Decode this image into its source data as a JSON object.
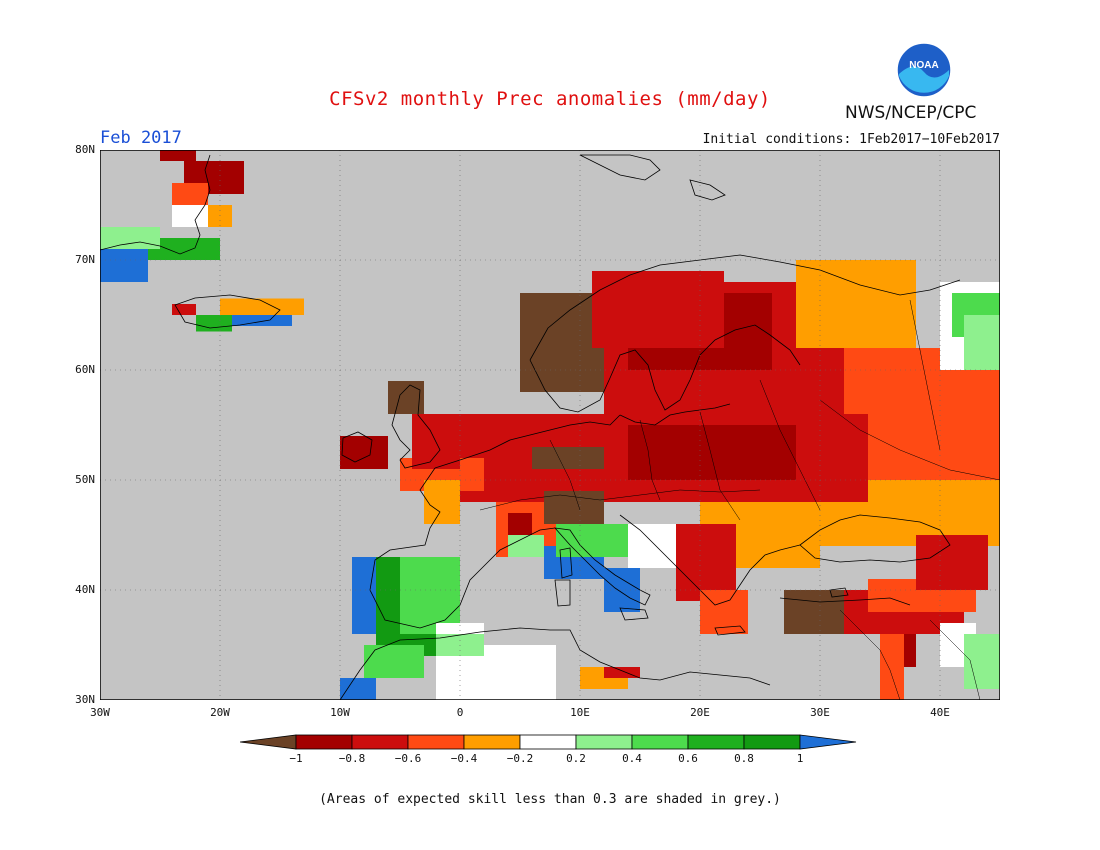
{
  "title": "CFSv2 monthly Prec anomalies (mm/day)",
  "month_label": "Feb 2017",
  "agency": "NWS/NCEP/CPC",
  "logo_text": "NOAA",
  "initial_conditions": "Initial conditions: 1Feb2017−10Feb2017",
  "footnote": "(Areas of expected skill less than 0.3 are shaded in grey.)",
  "colors": {
    "no_skill": "#c4c4c4",
    "land_outline": "#000000",
    "grid": "#666666"
  },
  "map": {
    "lon_range": [
      -30,
      45
    ],
    "lat_range": [
      30,
      80
    ],
    "lat_labels": [
      "30N",
      "40N",
      "50N",
      "60N",
      "70N",
      "80N"
    ],
    "lon_labels": [
      "30W",
      "20W",
      "10W",
      "0",
      "10E",
      "20E",
      "30E",
      "40E"
    ]
  },
  "colorbar": {
    "bins": [
      {
        "label": "< -1",
        "color": "#6b4226"
      },
      {
        "label": "-1 to -0.8",
        "color": "#a30000"
      },
      {
        "label": "-0.8 to -0.6",
        "color": "#cc0d0d"
      },
      {
        "label": "-0.6 to -0.4",
        "color": "#ff4a14"
      },
      {
        "label": "-0.4 to -0.2",
        "color": "#ff9e00"
      },
      {
        "label": "-0.2 to 0.2",
        "color": "#ffffff"
      },
      {
        "label": "0.2 to 0.4",
        "color": "#8ef08e"
      },
      {
        "label": "0.4 to 0.6",
        "color": "#4ddb4d"
      },
      {
        "label": "0.6 to 0.8",
        "color": "#1fb01f"
      },
      {
        "label": "0.8 to 1",
        "color": "#129a12"
      },
      {
        "label": "> 1",
        "color": "#1e6fd6"
      }
    ],
    "tick_labels": [
      "−1",
      "−0.8",
      "−0.6",
      "−0.4",
      "−0.2",
      "0.2",
      "0.4",
      "0.6",
      "0.8",
      "1"
    ]
  },
  "anomaly_regions": [
    {
      "bin": 2,
      "lat": [
        55,
        68
      ],
      "lon": [
        12,
        28
      ]
    },
    {
      "bin": 1,
      "lat": [
        60,
        67
      ],
      "lon": [
        14,
        26
      ]
    },
    {
      "bin": 2,
      "lat": [
        52,
        66
      ],
      "lon": [
        26,
        34
      ]
    },
    {
      "bin": 3,
      "lat": [
        46,
        62
      ],
      "lon": [
        32,
        45
      ]
    },
    {
      "bin": 4,
      "lat": [
        62,
        70
      ],
      "lon": [
        28,
        38
      ]
    },
    {
      "bin": 4,
      "lat": [
        44,
        50
      ],
      "lon": [
        30,
        45
      ]
    },
    {
      "bin": 5,
      "lat": [
        60,
        68
      ],
      "lon": [
        40,
        45
      ]
    },
    {
      "bin": 7,
      "lat": [
        63,
        67
      ],
      "lon": [
        41,
        45
      ]
    },
    {
      "bin": 2,
      "lat": [
        48,
        56
      ],
      "lon": [
        -2,
        34
      ]
    },
    {
      "bin": 1,
      "lat": [
        50,
        55
      ],
      "lon": [
        14,
        28
      ]
    },
    {
      "bin": 0,
      "lat": [
        51,
        53
      ],
      "lon": [
        6,
        12
      ]
    },
    {
      "bin": 0,
      "lat": [
        58,
        67
      ],
      "lon": [
        5,
        12
      ]
    },
    {
      "bin": 2,
      "lat": [
        62,
        69
      ],
      "lon": [
        11,
        22
      ]
    },
    {
      "bin": 3,
      "lat": [
        49,
        52
      ],
      "lon": [
        -5,
        2
      ]
    },
    {
      "bin": 4,
      "lat": [
        46,
        50
      ],
      "lon": [
        -3,
        0
      ]
    },
    {
      "bin": 2,
      "lat": [
        51,
        56
      ],
      "lon": [
        -4,
        0
      ]
    },
    {
      "bin": 1,
      "lat": [
        51,
        54
      ],
      "lon": [
        -10,
        -6
      ]
    },
    {
      "bin": 0,
      "lat": [
        56,
        59
      ],
      "lon": [
        -6,
        -3
      ]
    },
    {
      "bin": 3,
      "lat": [
        43,
        48
      ],
      "lon": [
        3,
        8
      ]
    },
    {
      "bin": 1,
      "lat": [
        44,
        47
      ],
      "lon": [
        4,
        6
      ]
    },
    {
      "bin": 0,
      "lat": [
        46,
        49
      ],
      "lon": [
        7,
        12
      ]
    },
    {
      "bin": 4,
      "lat": [
        42,
        48
      ],
      "lon": [
        20,
        30
      ]
    },
    {
      "bin": 2,
      "lat": [
        39,
        46
      ],
      "lon": [
        18,
        23
      ]
    },
    {
      "bin": 3,
      "lat": [
        36,
        40
      ],
      "lon": [
        20,
        24
      ]
    },
    {
      "bin": 5,
      "lat": [
        42,
        46
      ],
      "lon": [
        14,
        18
      ]
    },
    {
      "bin": 0,
      "lat": [
        36,
        40
      ],
      "lon": [
        27,
        32
      ]
    },
    {
      "bin": 2,
      "lat": [
        36,
        40
      ],
      "lon": [
        32,
        42
      ]
    },
    {
      "bin": 3,
      "lat": [
        38,
        41
      ],
      "lon": [
        34,
        43
      ]
    },
    {
      "bin": 2,
      "lat": [
        40,
        45
      ],
      "lon": [
        38,
        44
      ]
    },
    {
      "bin": 3,
      "lat": [
        30,
        36
      ],
      "lon": [
        35,
        37
      ]
    },
    {
      "bin": 1,
      "lat": [
        33,
        36
      ],
      "lon": [
        37,
        38
      ]
    },
    {
      "bin": 9,
      "lat": [
        34,
        43
      ],
      "lon": [
        -7,
        -2
      ]
    },
    {
      "bin": 10,
      "lat": [
        36,
        43
      ],
      "lon": [
        -9,
        -7
      ]
    },
    {
      "bin": 7,
      "lat": [
        36,
        43
      ],
      "lon": [
        -5,
        0
      ]
    },
    {
      "bin": 10,
      "lat": [
        41,
        44
      ],
      "lon": [
        7,
        12
      ]
    },
    {
      "bin": 10,
      "lat": [
        38,
        42
      ],
      "lon": [
        12,
        15
      ]
    },
    {
      "bin": 7,
      "lat": [
        43,
        46
      ],
      "lon": [
        8,
        14
      ]
    },
    {
      "bin": 6,
      "lat": [
        43,
        45
      ],
      "lon": [
        4,
        7
      ]
    },
    {
      "bin": 5,
      "lat": [
        30,
        35
      ],
      "lon": [
        2,
        8
      ]
    },
    {
      "bin": 5,
      "lat": [
        30,
        37
      ],
      "lon": [
        -2,
        2
      ]
    },
    {
      "bin": 7,
      "lat": [
        32,
        35
      ],
      "lon": [
        -8,
        -3
      ]
    },
    {
      "bin": 10,
      "lat": [
        30,
        32
      ],
      "lon": [
        -10,
        -7
      ]
    },
    {
      "bin": 6,
      "lat": [
        34,
        36
      ],
      "lon": [
        -2,
        2
      ]
    },
    {
      "bin": 4,
      "lat": [
        31,
        33
      ],
      "lon": [
        10,
        14
      ]
    },
    {
      "bin": 2,
      "lat": [
        32,
        33
      ],
      "lon": [
        12,
        15
      ]
    },
    {
      "bin": 5,
      "lat": [
        33,
        37
      ],
      "lon": [
        40,
        43
      ]
    },
    {
      "bin": 6,
      "lat": [
        31,
        36
      ],
      "lon": [
        42,
        45
      ]
    },
    {
      "bin": 6,
      "lat": [
        60,
        65
      ],
      "lon": [
        42,
        45
      ]
    },
    {
      "bin": 1,
      "lat": [
        76,
        79
      ],
      "lon": [
        -23,
        -18
      ]
    },
    {
      "bin": 3,
      "lat": [
        75,
        77
      ],
      "lon": [
        -24,
        -21
      ]
    },
    {
      "bin": 4,
      "lat": [
        73,
        75
      ],
      "lon": [
        -21,
        -19
      ]
    },
    {
      "bin": 5,
      "lat": [
        73,
        75
      ],
      "lon": [
        -24,
        -21
      ]
    },
    {
      "bin": 1,
      "lat": [
        79,
        80
      ],
      "lon": [
        -25,
        -22
      ]
    },
    {
      "bin": 8,
      "lat": [
        70,
        72
      ],
      "lon": [
        -28,
        -20
      ]
    },
    {
      "bin": 6,
      "lat": [
        71,
        73
      ],
      "lon": [
        -30,
        -25
      ]
    },
    {
      "bin": 10,
      "lat": [
        68,
        71
      ],
      "lon": [
        -30,
        -26
      ]
    },
    {
      "bin": 4,
      "lat": [
        65,
        66.5
      ],
      "lon": [
        -20,
        -13
      ]
    },
    {
      "bin": 10,
      "lat": [
        64,
        65
      ],
      "lon": [
        -19,
        -14
      ]
    },
    {
      "bin": 8,
      "lat": [
        63.5,
        65
      ],
      "lon": [
        -22,
        -19
      ]
    },
    {
      "bin": 2,
      "lat": [
        65,
        66
      ],
      "lon": [
        -24,
        -22
      ]
    }
  ]
}
